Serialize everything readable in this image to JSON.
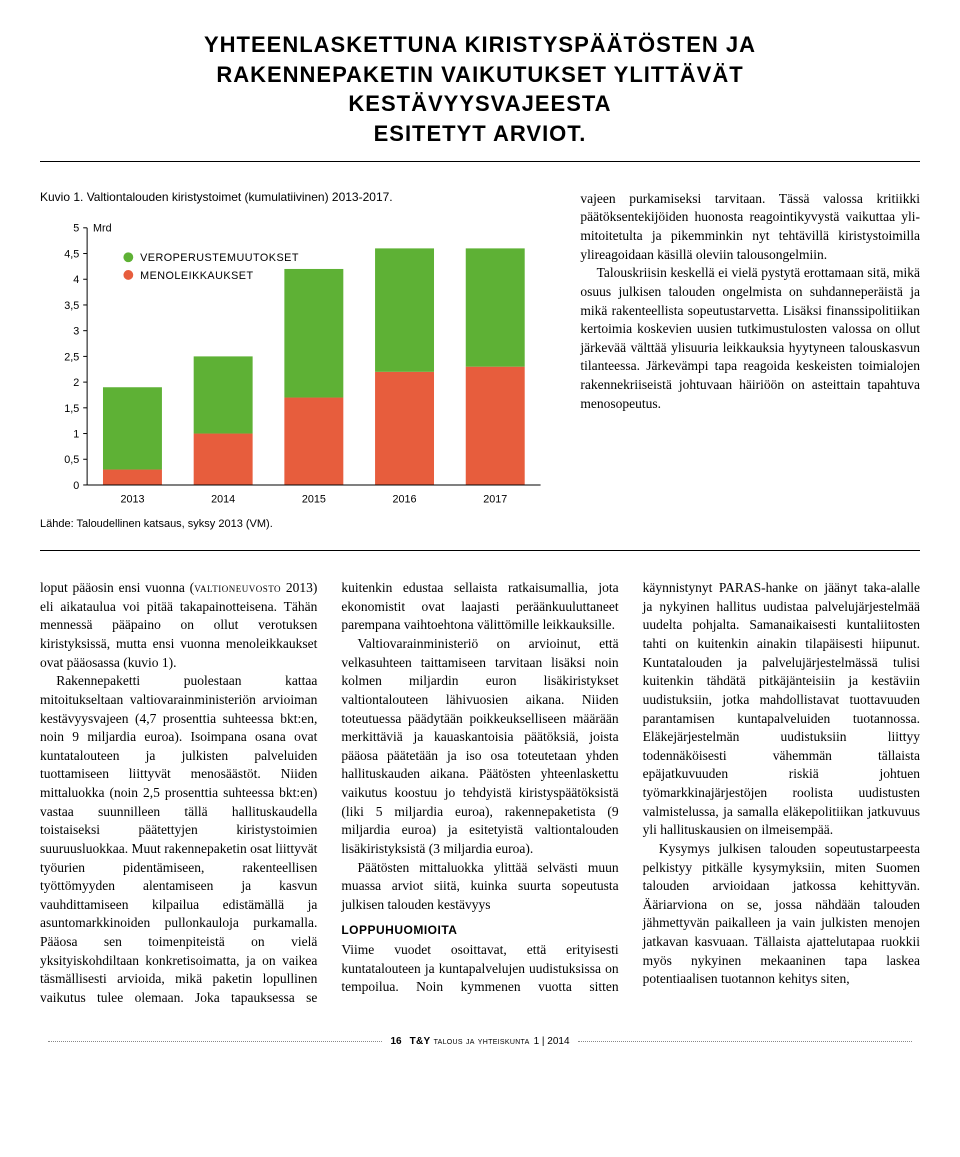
{
  "headline": {
    "line1": "Yhteenlaskettuna kiristyspäätösten ja",
    "line2": "rakennepaketin vaikutukset ylittävät kestävyysvajeesta",
    "line3": "esitetyt arviot."
  },
  "chart": {
    "title": "Kuvio 1. Valtiontalouden kiristystoimet (kumulatiivinen) 2013-2017.",
    "source": "Lähde: Taloudellinen katsaus, syksy 2013 (VM).",
    "type": "stacked-bar",
    "y_unit": "Mrd",
    "y_ticks": [
      "0",
      "0,5",
      "1",
      "1,5",
      "2",
      "2,5",
      "3",
      "3,5",
      "4",
      "4,5",
      "5"
    ],
    "ylim": [
      0,
      5
    ],
    "categories": [
      "2013",
      "2014",
      "2015",
      "2016",
      "2017"
    ],
    "series": [
      {
        "name": "MENOLEIKKAUKSET",
        "color": "#e75d3d",
        "values": [
          0.3,
          1.0,
          1.7,
          2.2,
          2.3
        ]
      },
      {
        "name": "VEROPERUSTEMUUTOKSET",
        "color": "#5eb135",
        "values": [
          1.6,
          1.5,
          2.5,
          2.4,
          2.3
        ]
      }
    ],
    "legend_marker_r": 5,
    "bar_width_ratio": 0.65,
    "axis_color": "#000000",
    "grid_color": "#c9c9c9",
    "background_color": "#ffffff",
    "label_fontsize": 12,
    "tick_fontsize": 11
  },
  "side_paragraphs": [
    "vajeen purkamiseksi tarvitaan. Tässä valossa kritiikki päätöksentekijöiden huonosta reagointikyvystä vaikuttaa yli­mitoitetulta ja pikemminkin nyt tehtävil­lä kiristystoimilla ylireagoidaan käsillä oleviin talousongelmiin.",
    "Talouskriisin keskellä ei vielä pystytä erottamaan sitä, mikä osuus julkisen ta­louden ongelmista on suhdanneperäistä ja mikä rakenteellista sopeutustarvetta. Lisäksi finanssipolitiikan kertoimia kos­kevien uusien tutkimustulosten valossa on ollut järkevää välttää ylisuuria leikka­uksia hyytyneen talouskasvun tilantees­sa. Järkevämpi tapa reagoida keskeisten toimialojen rakennekriiseistä johtuvaan häiriöön on asteittain tapahtuva menoso­peutus."
  ],
  "body": {
    "p1_prefix": "loput pääosin ensi vuonna (",
    "p1_sc": "valtioneuvosto",
    "p1_rest": " 2013) eli aikataulua voi pitää taka­painotteisena. Tähän mennessä pääpaino on ollut verotuksen kiristyksissä, mutta ensi vuonna menoleikkaukset ovat pää­osassa (kuvio 1).",
    "p2": "Rakennepaketti puolestaan kattaa mitoitukseltaan valtiovarainministe­riön arvioiman kestävyysvajeen (4,7 prosenttia suhteessa bkt:en, noin 9 miljardia euroa). Isoimpana osana ovat kuntatalouteen ja julkisten palveluiden tuottamiseen liittyvät menosäästöt. Nii­den mittaluokka (noin 2,5 prosenttia suhteessa bkt:en) vastaa suunnilleen tällä hallituskaudella toistaiseksi pää­tettyjen kiristystoimien suuruusluok­kaa. Muut rakennepaketin osat liittyvät työurien pidentämiseen, rakenteellisen työttömyyden alentamiseen ja kasvun vauhdittamiseen kilpailua edistämällä ja asuntomarkkinoiden pullonkauloja purkamalla. Pääosa sen toimenpiteistä on vielä yksityiskohdiltaan konkretisoi­matta, ja on vaikea täsmällisesti arvioida, mikä paketin lopullinen vaikutus tulee olemaan. Joka tapauksessa se kuitenkin edustaa sellaista ratkaisumallia, jota ekonomistit ovat laajasti peräänkuulut­taneet parempana vaihtoehtona välittö­mille leikkauksille.",
    "p3": "Valtiovarainministeriö on arvioinut, että velkasuhteen taittamiseen tarvitaan lisäksi noin kolmen miljardin euron lisä­kiristykset valtiontalouteen lähivuosien aikana. Niiden toteutuessa päädytään poikkeukselliseen määrään merkittäviä ja kauaskantoisia päätöksiä, joista pääosa päätetään ja iso osa toteutetaan yhden hallituskauden aikana. Päätösten yhteen­laskettu vaikutus koostuu jo tehdyistä ki­ristyspäätöksistä (liki 5 miljardia euroa), rakennepaketista (9 miljardia euroa) ja esitetyistä valtiontalouden lisäkiristyk­sistä (3 miljardia euroa).",
    "p4": "Päätösten mittaluokka ylittää selvästi muun muassa arviot siitä, kuinka suurta sopeutusta julkisen talouden kestävyys­",
    "subhead": "LOPPUHUOMIOITA",
    "p5": "Viime vuodet osoittavat, että erityisesti kuntatalouteen ja kuntapalvelujen uudis­tuksissa on tempoilua. Noin kymmenen vuotta sitten käynnistynyt PARAS-hanke on jäänyt taka-alalle ja nykyinen halli­tus uudistaa palvelujärjestelmää uudelta pohjalta. Samanaikaisesti kuntaliitosten tahti on kuitenkin ainakin tilapäisesti hiipunut. Kuntatalouden ja palvelu­järjestelmässä tulisi kuitenkin tähdätä pitkäjänteisiin ja kestäviin uudistuk­siin, jotka mahdollistavat tuottavuuden parantamisen kuntapalveluiden tuo­tannossa. Eläkejärjestelmän uudistuk­siin liittyy todennäköisesti vähemmän tällaista epäjatkuvuuden riskiä johtuen työmarkkinajärjestöjen roolista uudis­tusten valmistelussa, ja samalla eläke­politiikan jatkuvuus yli hallituskausien on ilmeisempää.",
    "p6": "Kysymys julkisen talouden sopeutus­tarpeesta pelkistyy pitkälle kysymyksiin, miten Suomen talouden arvioidaan jat­kossa kehittyvän. Ääriarviona on se, jossa nähdään talouden jähmettyvän paikal­leen ja vain julkisten menojen jatkavan kasvuaan. Tällaista ajattelutapaa ruokkii myös nykyinen mekaaninen tapa laskea potentiaalisen tuotannon kehitys siten,"
  },
  "footer": {
    "page": "16",
    "mag_bold": "T&Y",
    "mag_rest": "talous ja yhteiskunta",
    "issue": "1 | 2014"
  }
}
